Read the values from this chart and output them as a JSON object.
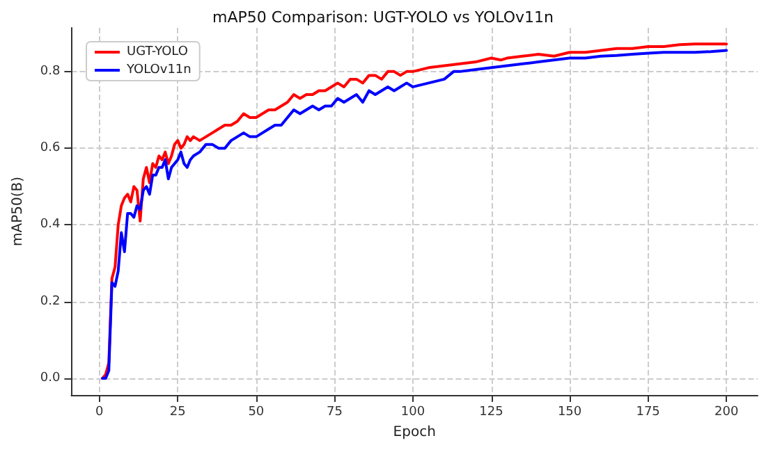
{
  "chart_data": {
    "type": "line",
    "title": "mAP50 Comparison: UGT-YOLO vs YOLOv11n",
    "xlabel": "Epoch",
    "ylabel": "mAP50(B)",
    "xlim": [
      -8.95,
      209.95
    ],
    "xticks": [
      0,
      25,
      50,
      75,
      100,
      125,
      150,
      175,
      200
    ],
    "ylim": [
      -0.0435,
      0.914
    ],
    "yticks": [
      {
        "value": 0,
        "label": "0.0"
      },
      {
        "value": 0.2,
        "label": "0.2"
      },
      {
        "value": 0.4,
        "label": "0.4"
      },
      {
        "value": 0.6,
        "label": "0.6"
      },
      {
        "value": 0.8,
        "label": "0.8"
      }
    ],
    "grid": true,
    "legend": "top left",
    "marker": "none",
    "line_style": "solid",
    "series": [
      {
        "name": "UGT-YOLO",
        "color": "#ff0000",
        "x": [
          1,
          2,
          3,
          4,
          5,
          6,
          7,
          8,
          9,
          10,
          11,
          12,
          13,
          14,
          15,
          16,
          17,
          18,
          19,
          20,
          21,
          22,
          23,
          24,
          25,
          26,
          27,
          28,
          29,
          30,
          32,
          34,
          36,
          38,
          40,
          42,
          44,
          46,
          48,
          50,
          52,
          54,
          56,
          58,
          60,
          62,
          64,
          66,
          68,
          70,
          72,
          74,
          76,
          78,
          80,
          82,
          84,
          86,
          88,
          90,
          92,
          94,
          96,
          98,
          100,
          105,
          110,
          115,
          120,
          125,
          128,
          130,
          135,
          140,
          145,
          150,
          155,
          160,
          165,
          170,
          175,
          180,
          185,
          190,
          195,
          200
        ],
        "values": [
          0.0,
          0.01,
          0.04,
          0.26,
          0.29,
          0.4,
          0.45,
          0.47,
          0.48,
          0.46,
          0.5,
          0.49,
          0.41,
          0.52,
          0.55,
          0.51,
          0.56,
          0.55,
          0.58,
          0.57,
          0.59,
          0.56,
          0.58,
          0.61,
          0.62,
          0.6,
          0.61,
          0.63,
          0.62,
          0.63,
          0.62,
          0.63,
          0.64,
          0.65,
          0.66,
          0.66,
          0.67,
          0.69,
          0.68,
          0.68,
          0.69,
          0.7,
          0.7,
          0.71,
          0.72,
          0.74,
          0.73,
          0.74,
          0.74,
          0.75,
          0.75,
          0.76,
          0.77,
          0.76,
          0.78,
          0.78,
          0.77,
          0.79,
          0.79,
          0.78,
          0.8,
          0.8,
          0.79,
          0.8,
          0.8,
          0.81,
          0.815,
          0.82,
          0.825,
          0.835,
          0.83,
          0.835,
          0.84,
          0.845,
          0.84,
          0.85,
          0.85,
          0.855,
          0.86,
          0.86,
          0.865,
          0.865,
          0.87,
          0.872,
          0.872,
          0.872
        ]
      },
      {
        "name": "YOLOv11n",
        "color": "#0000ff",
        "x": [
          1,
          2,
          3,
          4,
          5,
          6,
          7,
          8,
          9,
          10,
          11,
          12,
          13,
          14,
          15,
          16,
          17,
          18,
          19,
          20,
          21,
          22,
          23,
          24,
          25,
          26,
          27,
          28,
          29,
          30,
          32,
          34,
          36,
          38,
          40,
          42,
          44,
          46,
          48,
          50,
          52,
          54,
          56,
          58,
          60,
          62,
          64,
          66,
          68,
          70,
          72,
          74,
          76,
          78,
          80,
          82,
          84,
          86,
          88,
          90,
          92,
          94,
          96,
          98,
          100,
          105,
          110,
          113,
          115,
          120,
          125,
          130,
          135,
          140,
          145,
          150,
          155,
          160,
          165,
          170,
          175,
          180,
          185,
          190,
          195,
          200
        ],
        "values": [
          0.0,
          0.0,
          0.02,
          0.25,
          0.24,
          0.28,
          0.38,
          0.33,
          0.43,
          0.43,
          0.42,
          0.45,
          0.44,
          0.49,
          0.5,
          0.48,
          0.53,
          0.53,
          0.55,
          0.55,
          0.57,
          0.52,
          0.55,
          0.56,
          0.57,
          0.59,
          0.56,
          0.55,
          0.57,
          0.58,
          0.59,
          0.61,
          0.61,
          0.6,
          0.6,
          0.62,
          0.63,
          0.64,
          0.63,
          0.63,
          0.64,
          0.65,
          0.66,
          0.66,
          0.68,
          0.7,
          0.69,
          0.7,
          0.71,
          0.7,
          0.71,
          0.71,
          0.73,
          0.72,
          0.73,
          0.74,
          0.72,
          0.75,
          0.74,
          0.75,
          0.76,
          0.75,
          0.76,
          0.77,
          0.76,
          0.77,
          0.78,
          0.8,
          0.8,
          0.805,
          0.81,
          0.815,
          0.82,
          0.825,
          0.83,
          0.835,
          0.835,
          0.84,
          0.842,
          0.845,
          0.848,
          0.85,
          0.85,
          0.85,
          0.852,
          0.855
        ]
      }
    ]
  }
}
